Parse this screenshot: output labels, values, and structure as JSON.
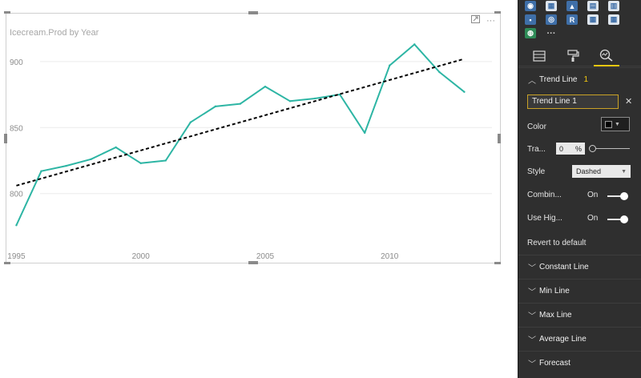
{
  "chart": {
    "title": "Icecream.Prod by Year"
  },
  "chart_data": {
    "type": "line",
    "title": "Icecream.Prod by Year",
    "x": [
      1995,
      1996,
      1997,
      1998,
      1999,
      2000,
      2001,
      2002,
      2003,
      2004,
      2005,
      2006,
      2007,
      2008,
      2009,
      2010,
      2011,
      2012,
      2013
    ],
    "series": [
      {
        "values": [
          776,
          817,
          821,
          826,
          835,
          823,
          825,
          854,
          866,
          868,
          881,
          870,
          872,
          875,
          846,
          897,
          913,
          892,
          877
        ]
      }
    ],
    "trend_line": {
      "style": "dashed",
      "color": "#000000",
      "start": {
        "x": 1995,
        "y": 806
      },
      "end": {
        "x": 2013,
        "y": 902
      }
    },
    "x_ticks": [
      1995,
      2000,
      2005,
      2010
    ],
    "y_ticks": [
      800,
      850,
      900
    ],
    "xlim": [
      1994.6,
      2014.5
    ],
    "ylim": [
      761,
      929
    ],
    "grid": true,
    "line_color": "#2db5a4"
  },
  "panel": {
    "tab_icons": [
      "fields-icon",
      "format-paint-roller-icon",
      "analytics-magnifier-icon"
    ],
    "trend_section": {
      "label": "Trend Line",
      "count": "1"
    },
    "trend_item": {
      "name": "Trend Line 1"
    },
    "color": {
      "label": "Color",
      "value": "#000000"
    },
    "transparency": {
      "label": "Tra...",
      "value": "0",
      "unit": "%"
    },
    "style": {
      "label": "Style",
      "value": "Dashed"
    },
    "combine": {
      "label": "Combin...",
      "state": "On"
    },
    "use_highlight": {
      "label": "Use Hig...",
      "state": "On"
    },
    "revert": "Revert to default",
    "sections": [
      "Constant Line",
      "Min Line",
      "Max Line",
      "Average Line",
      "Forecast"
    ]
  }
}
